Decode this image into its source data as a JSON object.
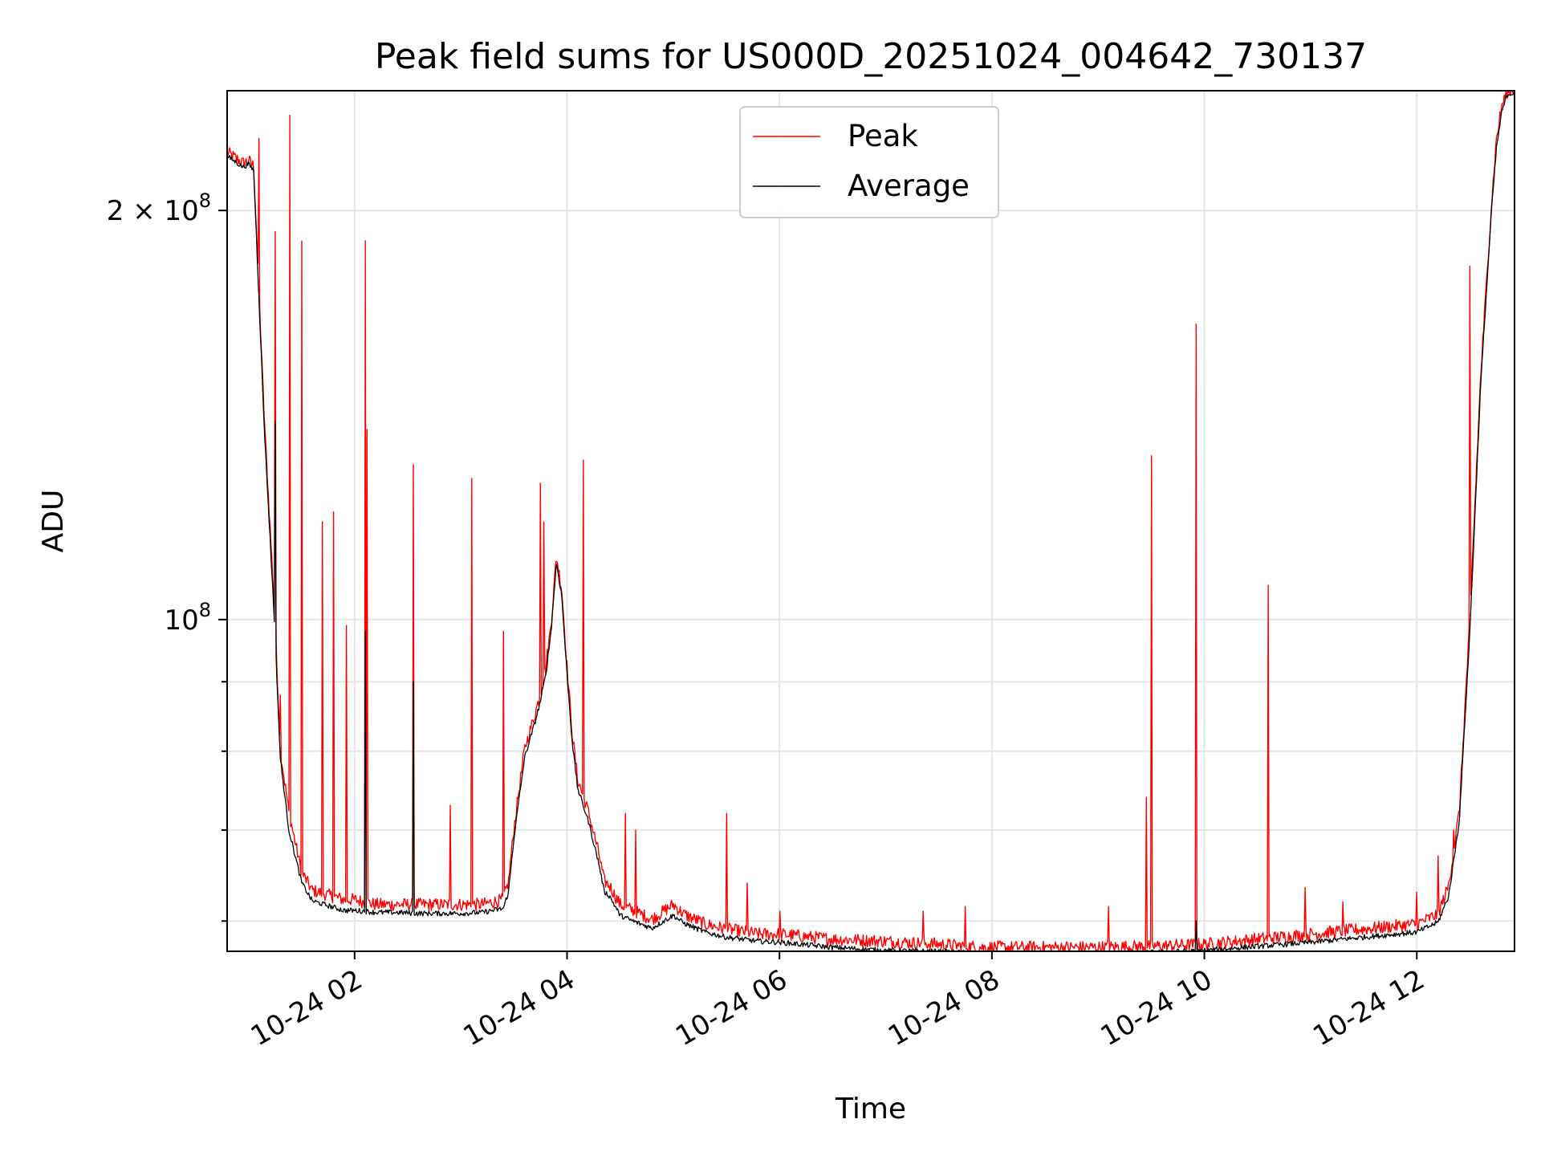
{
  "chart_data": {
    "type": "line",
    "title": "Peak field sums for US000D_20251024_004642_730137",
    "xlabel": "Time",
    "ylabel": "ADU",
    "yscale": "log",
    "grid": true,
    "legend_position": "upper center",
    "xlim_hours": [
      0.8,
      12.92
    ],
    "ylim": [
      57000000,
      245000000
    ],
    "x_ticks": [
      {
        "hour": 2,
        "label": "10-24 02"
      },
      {
        "hour": 4,
        "label": "10-24 04"
      },
      {
        "hour": 6,
        "label": "10-24 06"
      },
      {
        "hour": 8,
        "label": "10-24 08"
      },
      {
        "hour": 10,
        "label": "10-24 10"
      },
      {
        "hour": 12,
        "label": "10-24 12"
      }
    ],
    "y_major_ticks": [
      {
        "value": 100000000,
        "base": "10",
        "exp": "8",
        "coef": ""
      },
      {
        "value": 200000000,
        "base": "10",
        "exp": "8",
        "coef": "2 × "
      }
    ],
    "y_minor_ticks": [
      60000000,
      70000000,
      80000000,
      90000000
    ],
    "series": [
      {
        "name": "Peak",
        "color": "#ff0000",
        "x_hours": [
          0.8,
          0.95,
          1.0,
          1.05,
          1.15,
          1.25,
          1.3,
          1.38,
          1.5,
          1.6,
          1.75,
          1.9,
          2.0,
          2.2,
          2.4,
          2.6,
          2.8,
          3.0,
          3.2,
          3.4,
          3.45,
          3.5,
          3.6,
          3.7,
          3.75,
          3.8,
          3.85,
          3.9,
          3.95,
          4.0,
          4.05,
          4.1,
          4.2,
          4.3,
          4.35,
          4.4,
          4.5,
          4.6,
          4.8,
          5.0,
          5.1,
          5.3,
          5.5,
          5.8,
          6.0,
          6.5,
          7.0,
          7.5,
          7.9,
          8.5,
          9.0,
          9.5,
          10.0,
          10.5,
          11.0,
          11.5,
          12.0,
          12.2,
          12.3,
          12.4,
          12.5,
          12.6,
          12.7,
          12.75,
          12.8,
          12.85,
          12.92
        ],
        "y": [
          220000000,
          216000000,
          217000000,
          215000000,
          140000000,
          100000000,
          80000000,
          72000000,
          65000000,
          63000000,
          62500000,
          62000000,
          62000000,
          61500000,
          61500000,
          61500000,
          61500000,
          61500000,
          61500000,
          62000000,
          64000000,
          70000000,
          80000000,
          85000000,
          88000000,
          92000000,
          99000000,
          111000000,
          105000000,
          92000000,
          82000000,
          76000000,
          72000000,
          67000000,
          64000000,
          63500000,
          61500000,
          61000000,
          60000000,
          61500000,
          60500000,
          59500000,
          59000000,
          58500000,
          58500000,
          58000000,
          57800000,
          57500000,
          57200000,
          57200000,
          57200000,
          57300000,
          57500000,
          58000000,
          58500000,
          59000000,
          59500000,
          60500000,
          63500000,
          72000000,
          100000000,
          150000000,
          200000000,
          225000000,
          238000000,
          244000000,
          245000000
        ],
        "spikes": [
          [
            1.1,
            226000000
          ],
          [
            1.25,
            193000000
          ],
          [
            1.3,
            88000000
          ],
          [
            1.39,
            235000000
          ],
          [
            1.5,
            190000000
          ],
          [
            1.7,
            118000000
          ],
          [
            1.8,
            120000000
          ],
          [
            1.92,
            99000000
          ],
          [
            2.1,
            190000000
          ],
          [
            2.12,
            138000000
          ],
          [
            2.55,
            130000000
          ],
          [
            2.9,
            73000000
          ],
          [
            3.1,
            127000000
          ],
          [
            3.4,
            98000000
          ],
          [
            3.75,
            126000000
          ],
          [
            3.78,
            118000000
          ],
          [
            4.15,
            131000000
          ],
          [
            4.55,
            72000000
          ],
          [
            4.65,
            70000000
          ],
          [
            5.5,
            72000000
          ],
          [
            5.7,
            64000000
          ],
          [
            6.0,
            61000000
          ],
          [
            7.35,
            61000000
          ],
          [
            7.75,
            61500000
          ],
          [
            9.1,
            61500000
          ],
          [
            9.45,
            74000000
          ],
          [
            9.5,
            132000000
          ],
          [
            9.92,
            165000000
          ],
          [
            10.6,
            106000000
          ],
          [
            10.95,
            63500000
          ],
          [
            11.3,
            62000000
          ],
          [
            12.0,
            63000000
          ],
          [
            12.2,
            67000000
          ],
          [
            12.35,
            70000000
          ],
          [
            12.5,
            182000000
          ]
        ]
      },
      {
        "name": "Average",
        "color": "#000000",
        "x_hours": [
          0.8,
          0.95,
          1.0,
          1.05,
          1.15,
          1.25,
          1.3,
          1.38,
          1.5,
          1.6,
          1.75,
          1.9,
          2.0,
          2.2,
          2.4,
          2.6,
          2.8,
          3.0,
          3.2,
          3.4,
          3.45,
          3.5,
          3.6,
          3.7,
          3.75,
          3.8,
          3.85,
          3.9,
          3.95,
          4.0,
          4.05,
          4.1,
          4.2,
          4.3,
          4.35,
          4.4,
          4.5,
          4.6,
          4.8,
          5.0,
          5.1,
          5.3,
          5.5,
          5.8,
          6.0,
          6.5,
          7.0,
          7.5,
          7.9,
          8.5,
          9.0,
          9.5,
          10.0,
          10.5,
          11.0,
          11.5,
          12.0,
          12.2,
          12.3,
          12.4,
          12.5,
          12.6,
          12.7,
          12.75,
          12.8,
          12.85,
          12.92
        ],
        "y": [
          219000000,
          215000000,
          216000000,
          214000000,
          138000000,
          98000000,
          79000000,
          70000000,
          64000000,
          62000000,
          61500000,
          61000000,
          61000000,
          60800000,
          60800000,
          60700000,
          60700000,
          60700000,
          60800000,
          61200000,
          63000000,
          69000000,
          79000000,
          84000000,
          87000000,
          91000000,
          98000000,
          110000000,
          104000000,
          91000000,
          81000000,
          75000000,
          71000000,
          66000000,
          63000000,
          62500000,
          60500000,
          60000000,
          59200000,
          60500000,
          59700000,
          58800000,
          58300000,
          57900000,
          57800000,
          57300000,
          57000000,
          56900000,
          56700000,
          56700000,
          56700000,
          56800000,
          57000000,
          57400000,
          57800000,
          58300000,
          58800000,
          59800000,
          62500000,
          71000000,
          98000000,
          148000000,
          198000000,
          222000000,
          236000000,
          243000000,
          244000000
        ],
        "spikes": [
          [
            1.25,
            140000000
          ],
          [
            2.1,
            98000000
          ],
          [
            2.55,
            90000000
          ],
          [
            9.92,
            60000000
          ]
        ]
      }
    ]
  }
}
